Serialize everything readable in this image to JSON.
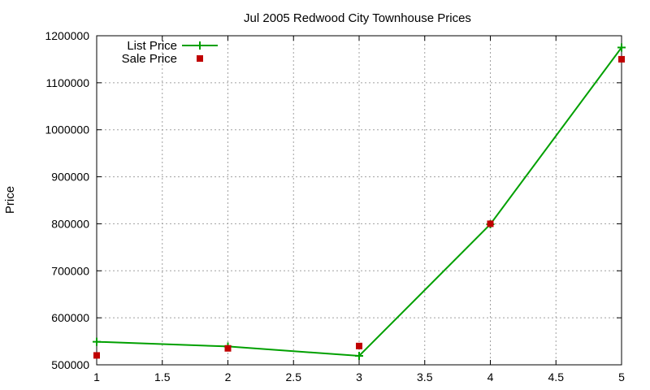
{
  "chart_data": {
    "type": "line",
    "title": "Jul 2005 Redwood City Townhouse Prices",
    "xlabel": "",
    "ylabel": "Price",
    "xlim": [
      1,
      5
    ],
    "ylim": [
      500000,
      1200000
    ],
    "x_ticks": [
      "1",
      "1.5",
      "2",
      "2.5",
      "3",
      "3.5",
      "4",
      "4.5",
      "5"
    ],
    "x_tick_values": [
      1,
      1.5,
      2,
      2.5,
      3,
      3.5,
      4,
      4.5,
      5
    ],
    "y_ticks": [
      "500000",
      "600000",
      "700000",
      "800000",
      "900000",
      "1000000",
      "1100000",
      "1200000"
    ],
    "y_tick_values": [
      500000,
      600000,
      700000,
      800000,
      900000,
      1000000,
      1100000,
      1200000
    ],
    "grid": true,
    "legend_position": "top-left",
    "series": [
      {
        "name": "List Price",
        "style": "lines+crosses",
        "color": "#00a000",
        "x": [
          1,
          2,
          3,
          4,
          5
        ],
        "y": [
          549000,
          539000,
          519000,
          799000,
          1175000
        ]
      },
      {
        "name": "Sale Price",
        "style": "squares",
        "color": "#c00000",
        "x": [
          1,
          2,
          3,
          4,
          5
        ],
        "y": [
          520000,
          535000,
          540000,
          800000,
          1150000
        ]
      }
    ]
  }
}
